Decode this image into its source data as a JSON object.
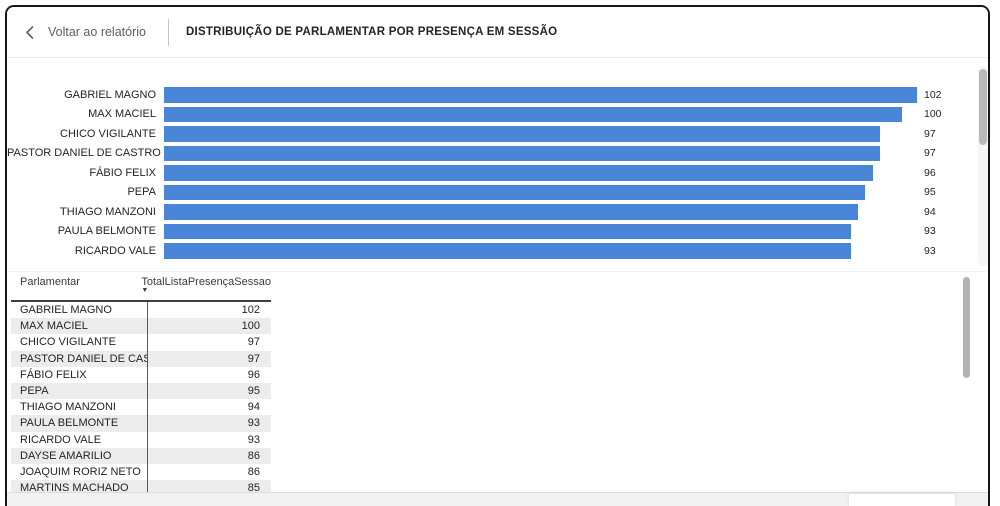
{
  "header": {
    "back_label": "Voltar ao relatório",
    "title": "DISTRIBUIÇÃO DE PARLAMENTAR POR PRESENÇA EM SESSÃO"
  },
  "colors": {
    "bar": "#4a86d8",
    "alt_row": "#ececec",
    "scrollbar_thumb": "#b9b9b9"
  },
  "chart_data": {
    "type": "bar",
    "orientation": "horizontal",
    "title": "DISTRIBUIÇÃO DE PARLAMENTAR POR PRESENÇA EM SESSÃO",
    "categories": [
      "GABRIEL MAGNO",
      "MAX MACIEL",
      "CHICO VIGILANTE",
      "PASTOR DANIEL DE CASTRO",
      "FÁBIO FELIX",
      "PEPA",
      "THIAGO MANZONI",
      "PAULA BELMONTE",
      "RICARDO VALE"
    ],
    "values": [
      102,
      100,
      97,
      97,
      96,
      95,
      94,
      93,
      93
    ],
    "data_labels": true,
    "xlim": [
      0,
      102
    ],
    "xlabel": "",
    "ylabel": ""
  },
  "table": {
    "columns": [
      "Parlamentar",
      "TotalListaPresençaSessao"
    ],
    "sort": {
      "column": "TotalListaPresençaSessao",
      "direction": "desc",
      "icon": "▼"
    },
    "rows": [
      [
        "GABRIEL MAGNO",
        "102"
      ],
      [
        "MAX MACIEL",
        "100"
      ],
      [
        "CHICO VIGILANTE",
        "97"
      ],
      [
        "PASTOR DANIEL DE CASTRO",
        "97"
      ],
      [
        "FÁBIO FELIX",
        "96"
      ],
      [
        "PEPA",
        "95"
      ],
      [
        "THIAGO MANZONI",
        "94"
      ],
      [
        "PAULA BELMONTE",
        "93"
      ],
      [
        "RICARDO VALE",
        "93"
      ],
      [
        "DAYSE AMARILIO",
        "86"
      ],
      [
        "JOAQUIM RORIZ NETO",
        "86"
      ],
      [
        "MARTINS MACHADO",
        "85"
      ]
    ]
  }
}
